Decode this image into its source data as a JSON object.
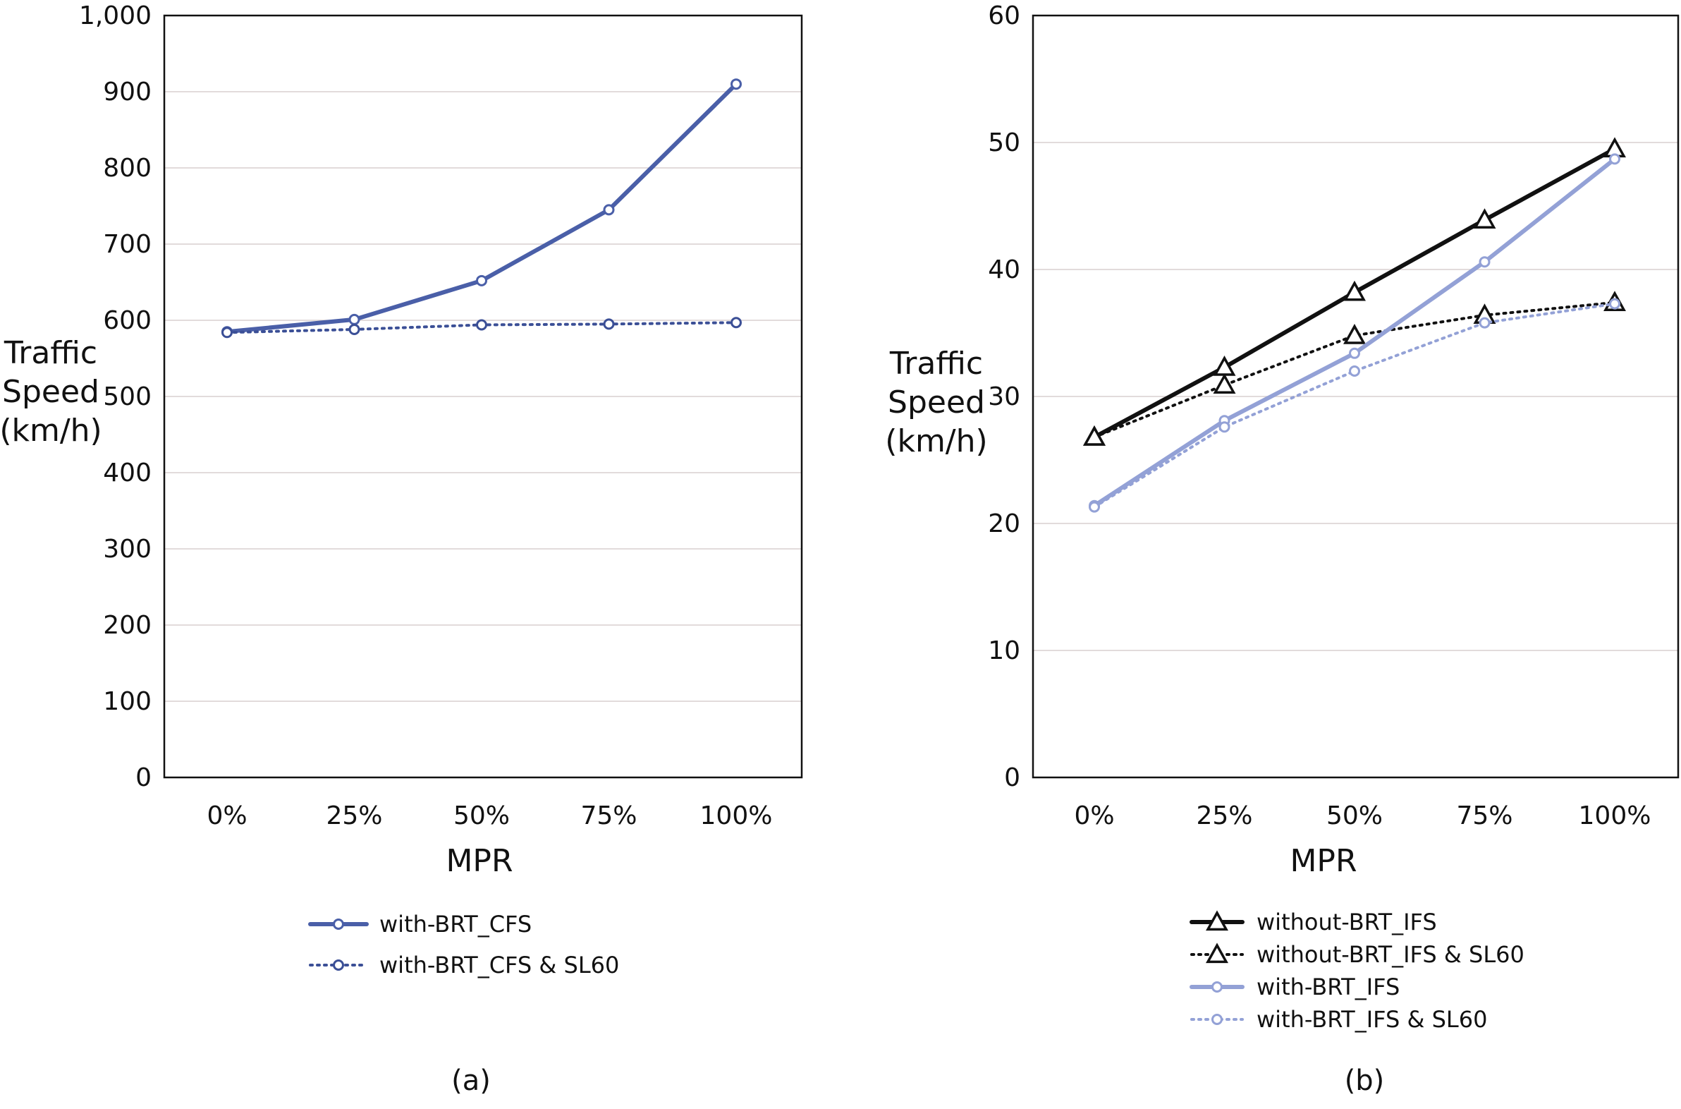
{
  "chart_data": [
    {
      "type": "line",
      "caption": "(a)",
      "xlabel": "MPR",
      "ylabel": [
        "Traffic",
        "Speed",
        "(km/h)"
      ],
      "categories": [
        "0%",
        "25%",
        "50%",
        "75%",
        "100%"
      ],
      "ylim": [
        0,
        1000
      ],
      "yticks": [
        "0",
        "100",
        "200",
        "300",
        "400",
        "500",
        "600",
        "700",
        "800",
        "900",
        "1,000"
      ],
      "grid": true,
      "legend_position": "bottom",
      "series": [
        {
          "name": "with-BRT_CFS",
          "values": [
            585,
            601,
            652,
            745,
            910
          ],
          "color": "#4a5fa8",
          "style": "solid",
          "marker": "circle"
        },
        {
          "name": "with-BRT_CFS & SL60",
          "values": [
            584,
            588,
            594,
            595,
            597
          ],
          "color": "#3b4f96",
          "style": "dotted",
          "marker": "circle"
        }
      ]
    },
    {
      "type": "line",
      "caption": "(b)",
      "xlabel": "MPR",
      "ylabel": [
        "Traffic",
        "Speed",
        "(km/h)"
      ],
      "categories": [
        "0%",
        "25%",
        "50%",
        "75%",
        "100%"
      ],
      "ylim": [
        0,
        60
      ],
      "yticks": [
        "0",
        "10",
        "20",
        "30",
        "40",
        "50",
        "60"
      ],
      "grid": true,
      "legend_position": "bottom",
      "series": [
        {
          "name": "without-BRT_IFS",
          "values": [
            26.8,
            32.3,
            38.2,
            43.9,
            49.5
          ],
          "color": "#111111",
          "style": "solid",
          "marker": "triangle"
        },
        {
          "name": "without-BRT_IFS & SL60",
          "values": [
            26.8,
            30.9,
            34.8,
            36.4,
            37.4
          ],
          "color": "#111111",
          "style": "dotted",
          "marker": "triangle"
        },
        {
          "name": "with-BRT_IFS",
          "values": [
            21.4,
            28.1,
            33.4,
            40.6,
            48.7
          ],
          "color": "#93a1d6",
          "style": "solid",
          "marker": "circle"
        },
        {
          "name": "with-BRT_IFS & SL60",
          "values": [
            21.3,
            27.6,
            32.0,
            35.8,
            37.3
          ],
          "color": "#93a1d6",
          "style": "dotted",
          "marker": "circle"
        }
      ]
    }
  ]
}
